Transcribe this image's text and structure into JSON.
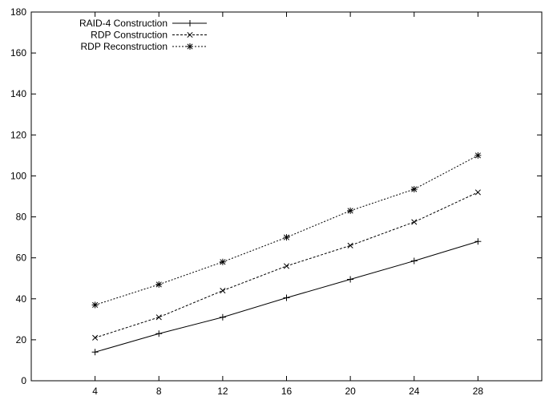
{
  "chart_data": {
    "type": "line",
    "title": "",
    "xlabel": "",
    "ylabel": "",
    "xlim": [
      0,
      32
    ],
    "ylim": [
      0,
      180
    ],
    "xticks": [
      4,
      8,
      12,
      16,
      20,
      24,
      28
    ],
    "yticks": [
      0,
      20,
      40,
      60,
      80,
      100,
      120,
      140,
      160,
      180
    ],
    "grid": false,
    "legend_position": "top-left",
    "series": [
      {
        "name": "RAID-4 Construction",
        "marker": "plus",
        "dash": "solid",
        "x": [
          4,
          8,
          12,
          16,
          20,
          24,
          28
        ],
        "y": [
          14,
          23,
          31,
          40.5,
          49.5,
          58.5,
          68
        ]
      },
      {
        "name": "RDP Construction",
        "marker": "cross",
        "dash": "dashed",
        "x": [
          4,
          8,
          12,
          16,
          20,
          24,
          28
        ],
        "y": [
          21,
          31,
          44,
          56,
          66,
          77.5,
          92
        ]
      },
      {
        "name": "RDP Reconstruction",
        "marker": "star",
        "dash": "dotted",
        "x": [
          4,
          8,
          12,
          16,
          20,
          24,
          28
        ],
        "y": [
          37,
          47,
          58,
          70,
          83,
          93.5,
          110
        ]
      }
    ]
  }
}
